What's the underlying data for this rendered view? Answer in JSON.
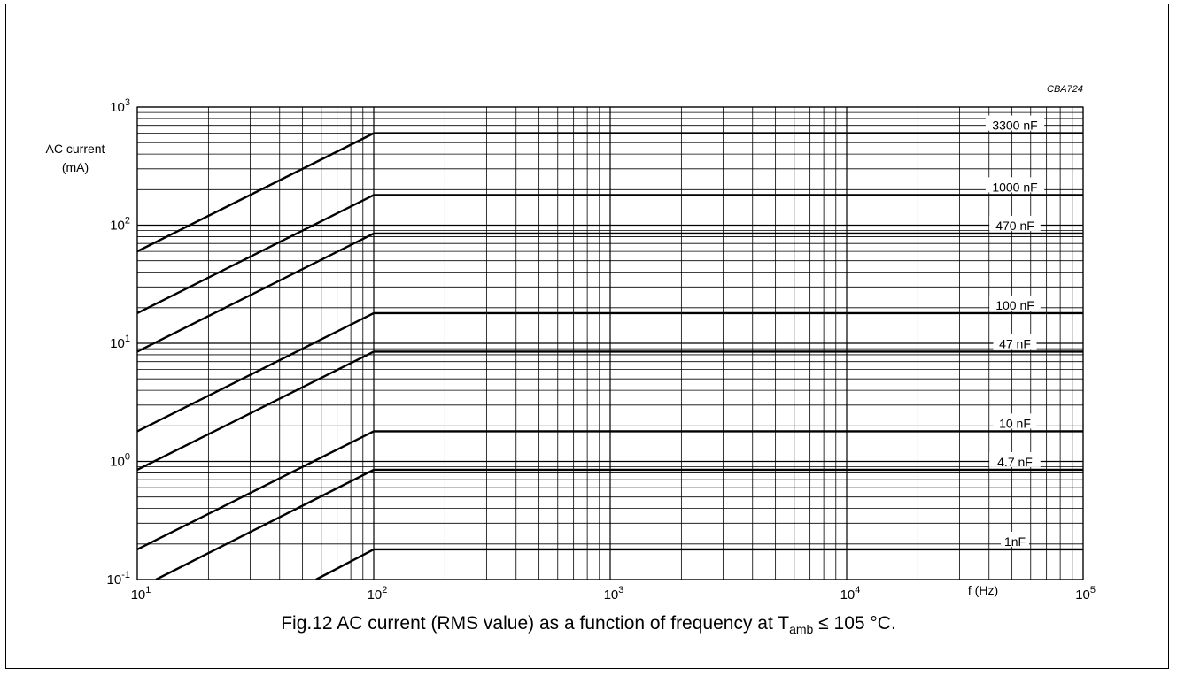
{
  "chart_data": {
    "type": "line",
    "x_scale": "log",
    "y_scale": "log",
    "xlim": [
      10,
      100000
    ],
    "ylim": [
      0.1,
      1000
    ],
    "x_tick_labels": [
      {
        "base": "10",
        "exp": "1"
      },
      {
        "base": "10",
        "exp": "2"
      },
      {
        "base": "10",
        "exp": "3"
      },
      {
        "base": "10",
        "exp": "4"
      },
      {
        "base": "10",
        "exp": "5"
      }
    ],
    "y_tick_labels": [
      {
        "base": "10",
        "exp": "-1"
      },
      {
        "base": "10",
        "exp": "0"
      },
      {
        "base": "10",
        "exp": "1"
      },
      {
        "base": "10",
        "exp": "2"
      },
      {
        "base": "10",
        "exp": "3"
      }
    ],
    "xlabel": "f (Hz)",
    "ylabel_line1": "AC current",
    "ylabel_line2": "(mA)",
    "code": "CBA724",
    "grid": true,
    "series": [
      {
        "name": "3300 nF",
        "x": [
          10,
          100,
          100000
        ],
        "y": [
          60,
          600,
          600
        ]
      },
      {
        "name": "1000 nF",
        "x": [
          10,
          100,
          100000
        ],
        "y": [
          18,
          180,
          180
        ]
      },
      {
        "name": "470 nF",
        "x": [
          10,
          100,
          100000
        ],
        "y": [
          8.5,
          85,
          85
        ]
      },
      {
        "name": "100 nF",
        "x": [
          10,
          100,
          100000
        ],
        "y": [
          1.8,
          18,
          18
        ]
      },
      {
        "name": "47 nF",
        "x": [
          10,
          100,
          100000
        ],
        "y": [
          0.85,
          8.5,
          8.5
        ]
      },
      {
        "name": "10 nF",
        "x": [
          10,
          100,
          100000
        ],
        "y": [
          0.18,
          1.8,
          1.8
        ]
      },
      {
        "name": "4.7 nF",
        "x": [
          12,
          100,
          100000
        ],
        "y": [
          0.1,
          0.85,
          0.85
        ]
      },
      {
        "name": "1nF",
        "x": [
          57,
          100,
          100000
        ],
        "y": [
          0.1,
          0.18,
          0.18
        ]
      }
    ]
  },
  "caption": {
    "prefix": "Fig.12  AC current (RMS value) as a function of frequency at T",
    "sub": "amb",
    "suffix": " ≤ 105 °C."
  }
}
